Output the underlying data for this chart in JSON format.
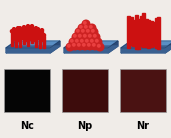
{
  "labels": [
    "Nc",
    "Np",
    "Nr"
  ],
  "bg_color": "#f0ece8",
  "photo_colors": [
    "#050505",
    "#3d0c0c",
    "#4a1212"
  ],
  "photo_border": "#999999",
  "label_fontsize": 7,
  "label_fontweight": "bold",
  "fto_top": "#5a8fc4",
  "fto_left": "#3a6090",
  "fto_right": "#2a4a78",
  "rod_color": "#cc1111",
  "sphere_color": "#cc2222",
  "sphere_hi": "#ee4444",
  "figw": 1.71,
  "figh": 1.38,
  "dpi": 100
}
